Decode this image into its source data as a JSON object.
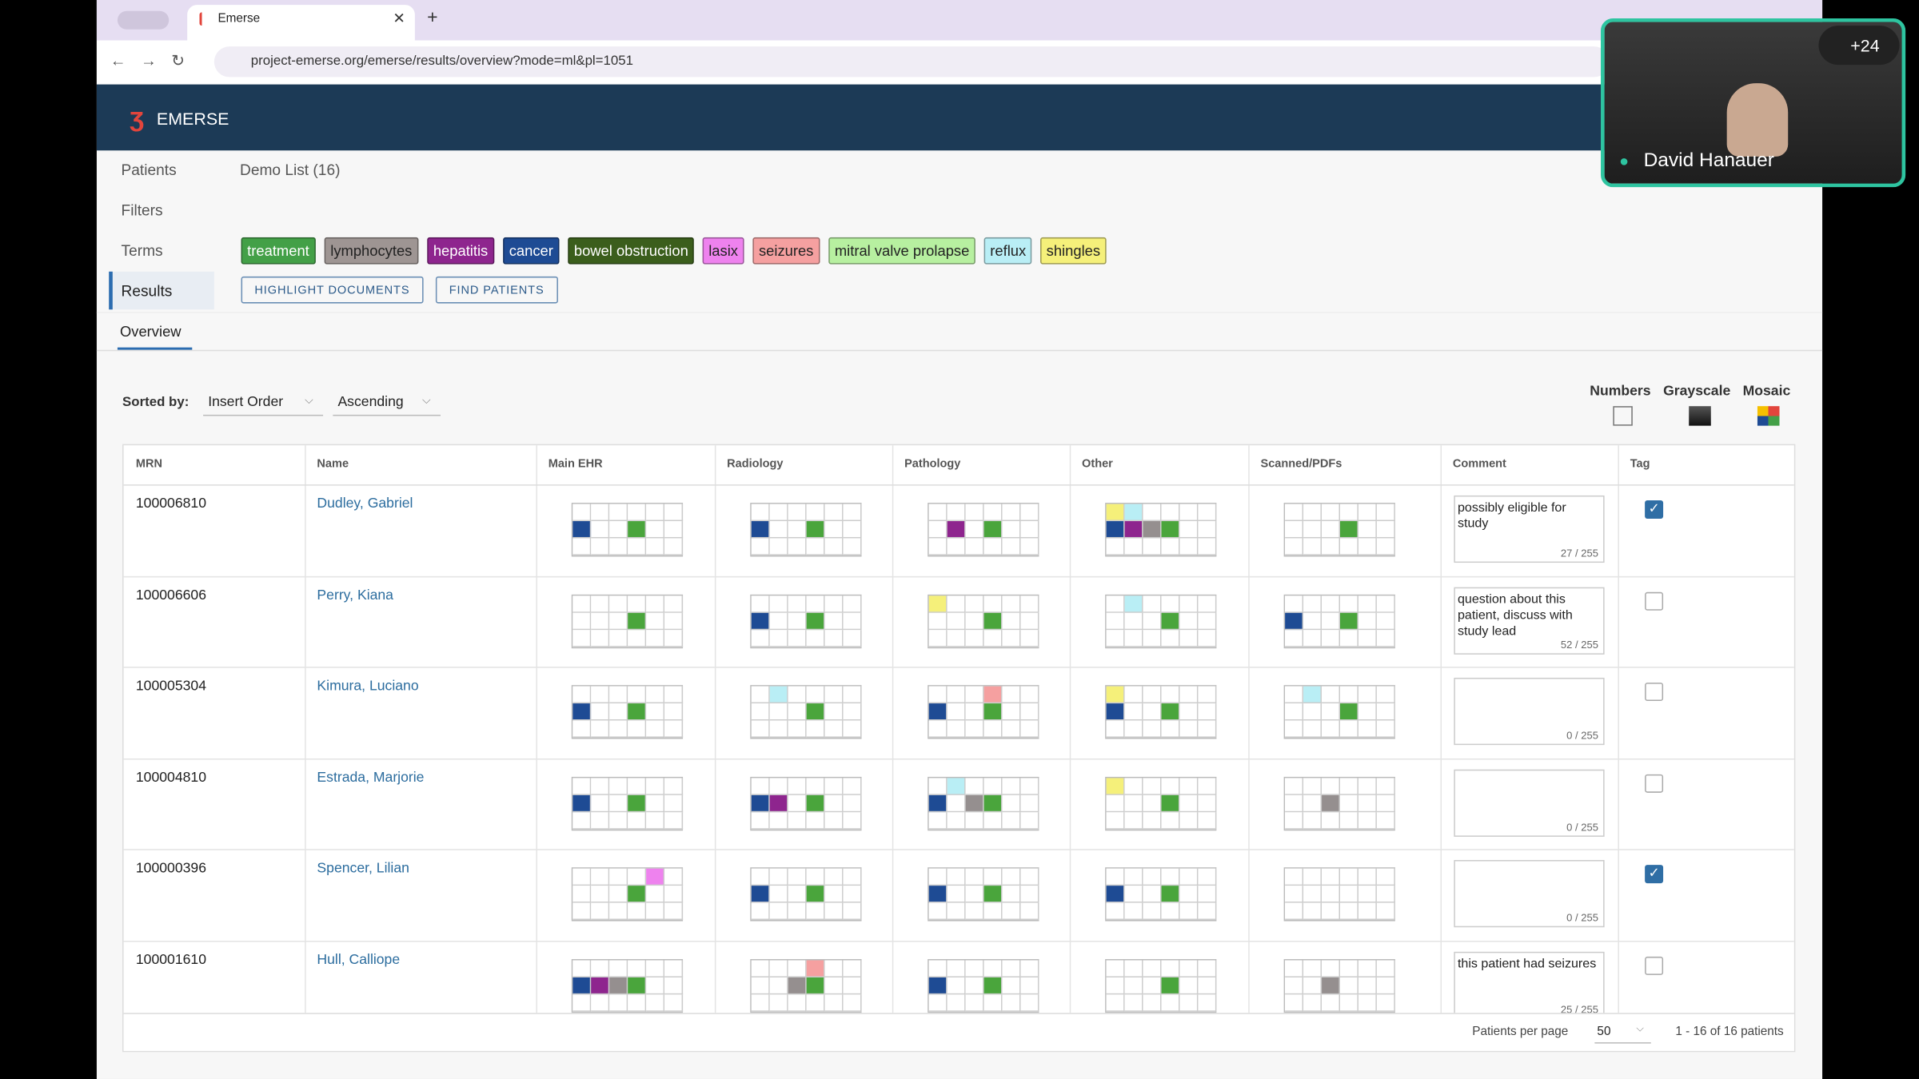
{
  "browser": {
    "tab_title": "Emerse",
    "url": "project-emerse.org/emerse/results/overview?mode=ml&pl=1051"
  },
  "app": {
    "name": "EMERSE"
  },
  "nav": {
    "items": [
      "Patients",
      "Filters",
      "Terms",
      "Results"
    ],
    "active": 3
  },
  "list_name": "Demo List (16)",
  "terms": [
    {
      "label": "treatment",
      "color": "#43a047"
    },
    {
      "label": "lymphocytes",
      "color": "#9e9593"
    },
    {
      "label": "hepatitis",
      "color": "#8e258e"
    },
    {
      "label": "cancer",
      "color": "#1e4b94"
    },
    {
      "label": "bowel obstruction",
      "color": "#3b5e1c"
    },
    {
      "label": "lasix",
      "color": "#ee82ee"
    },
    {
      "label": "seizures",
      "color": "#f5a0a0"
    },
    {
      "label": "mitral valve prolapse",
      "color": "#b7f0a0"
    },
    {
      "label": "reflux",
      "color": "#b9eef5"
    },
    {
      "label": "shingles",
      "color": "#f5f07a"
    }
  ],
  "buttons": [
    "HIGHLIGHT DOCUMENTS",
    "FIND PATIENTS"
  ],
  "tab": "Overview",
  "sort": {
    "label": "Sorted by:",
    "field": "Insert Order",
    "order": "Ascending"
  },
  "view_modes": [
    "Numbers",
    "Grayscale",
    "Mosaic"
  ],
  "table": {
    "columns": [
      "MRN",
      "Name",
      "Main EHR",
      "Radiology",
      "Pathology",
      "Other",
      "Scanned/PDFs",
      "Comment",
      "Tag"
    ],
    "rows": [
      {
        "mrn": "100006810",
        "name": "Dudley, Gabriel",
        "comment": "possibly eligible for study",
        "counter": "27 / 255",
        "tagged": true
      },
      {
        "mrn": "100006606",
        "name": "Perry, Kiana",
        "comment": "question about this patient, discuss with study lead",
        "counter": "52 / 255",
        "tagged": false
      },
      {
        "mrn": "100005304",
        "name": "Kimura, Luciano",
        "comment": "",
        "counter": "0 / 255",
        "tagged": false
      },
      {
        "mrn": "100004810",
        "name": "Estrada, Marjorie",
        "comment": "",
        "counter": "0 / 255",
        "tagged": false
      },
      {
        "mrn": "100000396",
        "name": "Spencer, Lilian",
        "comment": "",
        "counter": "0 / 255",
        "tagged": true
      },
      {
        "mrn": "100001610",
        "name": "Hull, Calliope",
        "comment": "this patient had seizures",
        "counter": "25 / 255",
        "tagged": false
      }
    ]
  },
  "footer": {
    "per_page_label": "Patients per page",
    "per_page": "50",
    "range": "1 - 16 of 16 patients"
  },
  "video": {
    "name": "David Hanauer",
    "participants": "+24"
  }
}
